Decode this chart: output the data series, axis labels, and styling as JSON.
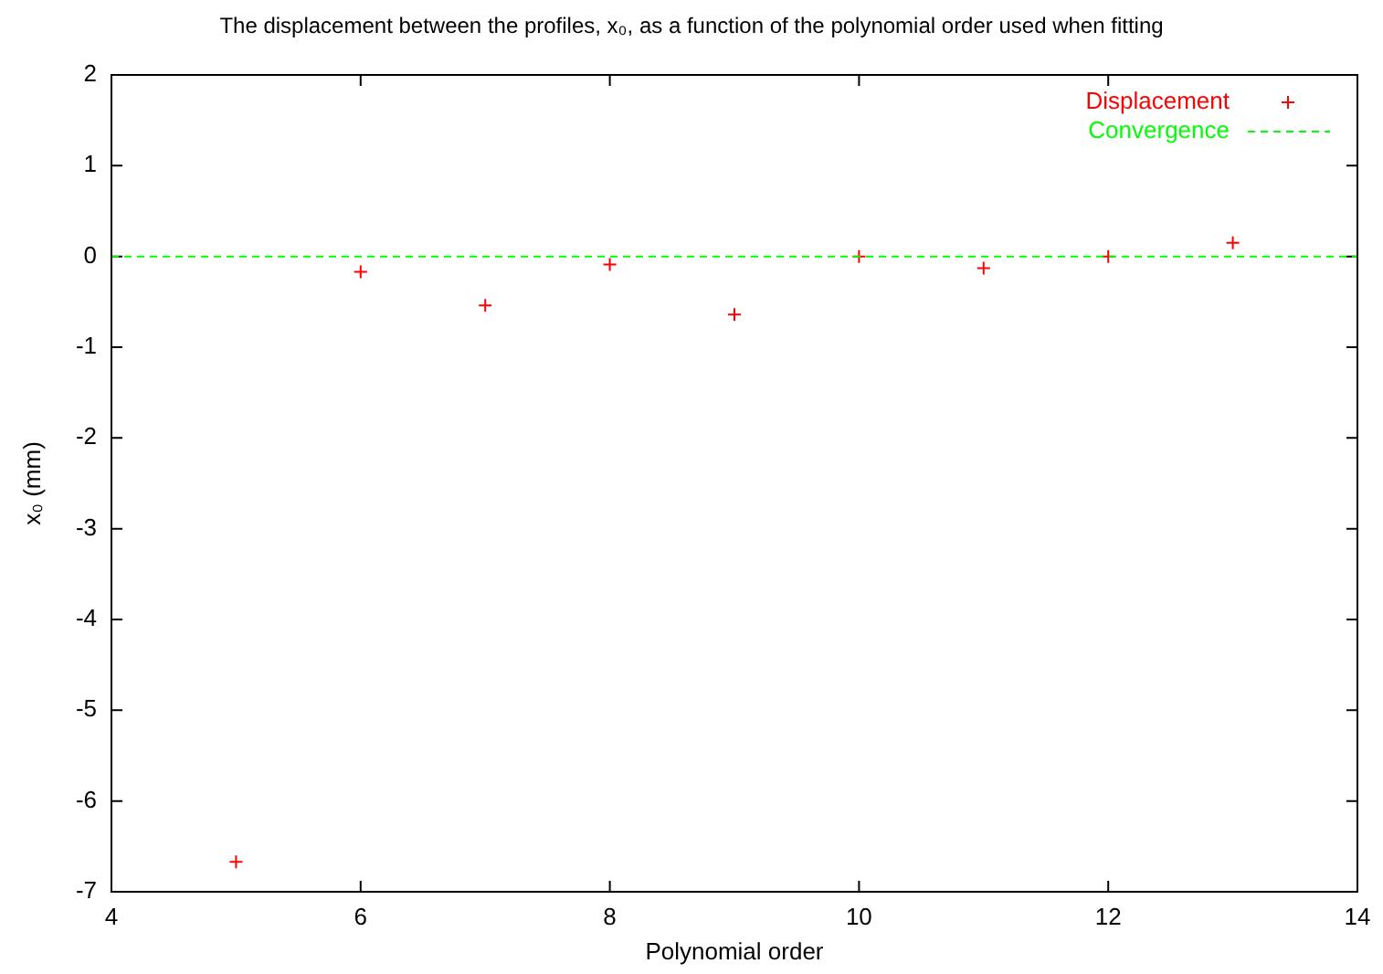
{
  "chart_data": {
    "type": "scatter",
    "title": "The displacement between the profiles, x₀, as a function of the polynomial order used when fitting",
    "xlabel": "Polynomial order",
    "ylabel": "x₀ (mm)",
    "xlim": [
      4,
      14
    ],
    "xticks": [
      4,
      6,
      8,
      10,
      12,
      14
    ],
    "ylim": [
      -7,
      2
    ],
    "yticks": [
      -7,
      -6,
      -5,
      -4,
      -3,
      -2,
      -1,
      0,
      1,
      2
    ],
    "legend": "top right",
    "series": [
      {
        "name": "Displacement",
        "color": "#ff0000",
        "marker": "cross",
        "x": [
          5,
          6,
          7,
          8,
          9,
          10,
          11,
          12,
          13
        ],
        "values": [
          -6.67,
          -0.17,
          -0.54,
          -0.09,
          -0.64,
          0,
          -0.13,
          0,
          0.15
        ]
      },
      {
        "name": "Convergence",
        "type": "line",
        "color": "#00ff00",
        "line_style": "dashed",
        "marker": "none",
        "x": [
          4,
          14
        ],
        "values": [
          0,
          0
        ]
      }
    ]
  }
}
